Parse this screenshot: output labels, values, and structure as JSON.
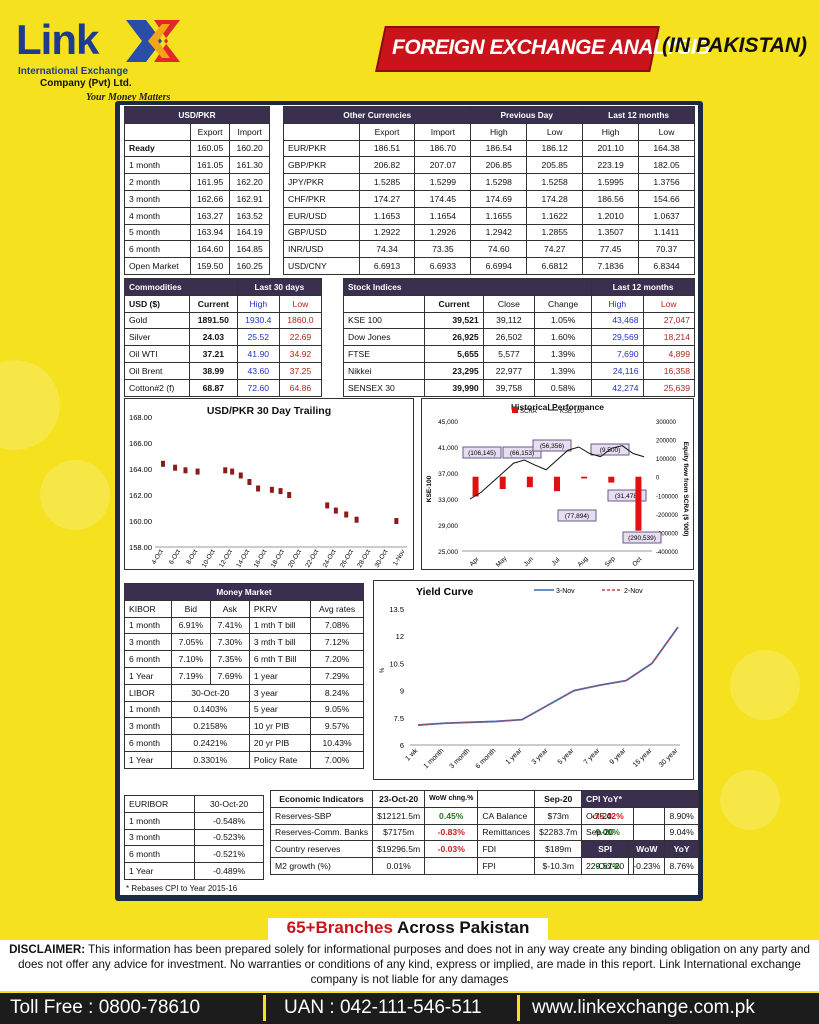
{
  "header": {
    "logo_main": "Link",
    "logo_sub1": "International Exchange",
    "logo_sub2": "Company (Pvt) Ltd.",
    "logo_tagline": "Your Money Matters",
    "banner_title": "FOREIGN EXCHANGE ANALYSIS",
    "banner_region": "(IN PAKISTAN)"
  },
  "usdpkr": {
    "title": "USD/PKR",
    "cols": [
      "Export",
      "Import"
    ],
    "rows": [
      [
        "Ready",
        "160.05",
        "160.20"
      ],
      [
        "1 month",
        "161.05",
        "161.30"
      ],
      [
        "2 month",
        "161.95",
        "162.20"
      ],
      [
        "3 month",
        "162.66",
        "162.91"
      ],
      [
        "4 month",
        "163.27",
        "163.52"
      ],
      [
        "5 month",
        "163.94",
        "164.19"
      ],
      [
        "6 month",
        "164.60",
        "164.85"
      ],
      [
        "Open Market",
        "159.50",
        "160.25"
      ]
    ]
  },
  "other": {
    "title": "Other Currencies",
    "prev_title": "Previous Day",
    "l12_title": "Last 12 months",
    "cols": [
      "Export",
      "Import",
      "High",
      "Low",
      "High",
      "Low"
    ],
    "rows": [
      [
        "EUR/PKR",
        "186.51",
        "186.70",
        "186.54",
        "186.12",
        "201.10",
        "164.38"
      ],
      [
        "GBP/PKR",
        "206.82",
        "207.07",
        "206.85",
        "205.85",
        "223.19",
        "182.05"
      ],
      [
        "JPY/PKR",
        "1.5285",
        "1.5299",
        "1.5298",
        "1.5258",
        "1.5995",
        "1.3756"
      ],
      [
        "CHF/PKR",
        "174.27",
        "174.45",
        "174.69",
        "174.28",
        "186.56",
        "154.66"
      ],
      [
        "EUR/USD",
        "1.1653",
        "1.1654",
        "1.1655",
        "1.1622",
        "1.2010",
        "1.0637"
      ],
      [
        "GBP/USD",
        "1.2922",
        "1.2926",
        "1.2942",
        "1.2855",
        "1.3507",
        "1.1411"
      ],
      [
        "INR/USD",
        "74.34",
        "73.35",
        "74.60",
        "74.27",
        "77.45",
        "70.37"
      ],
      [
        "USD/CNY",
        "6.6913",
        "6.6933",
        "6.6994",
        "6.6812",
        "7.1836",
        "6.8344"
      ]
    ]
  },
  "commodities": {
    "title": "Commodities",
    "last30": "Last 30 days",
    "cols": [
      "USD ($)",
      "Current",
      "High",
      "Low"
    ],
    "rows": [
      [
        "Gold",
        "1891.50",
        "1930.4",
        "1860.0"
      ],
      [
        "Silver",
        "24.03",
        "25.52",
        "22.69"
      ],
      [
        "Oil WTI",
        "37.21",
        "41.90",
        "34.92"
      ],
      [
        "Oil Brent",
        "38.99",
        "43.60",
        "37.25"
      ],
      [
        "Cotton#2 (f)",
        "68.87",
        "72.60",
        "64.86"
      ]
    ]
  },
  "stocks": {
    "title": "Stock Indices",
    "l12": "Last 12 months",
    "cols": [
      "Current",
      "Close",
      "Change",
      "High",
      "Low"
    ],
    "rows": [
      [
        "KSE 100",
        "39,521",
        "39,112",
        "1.05%",
        "43,468",
        "27,047"
      ],
      [
        "Dow Jones",
        "26,925",
        "26,502",
        "1.60%",
        "29,569",
        "18,214"
      ],
      [
        "FTSE",
        "5,655",
        "5,577",
        "1.39%",
        "7,690",
        "4,899"
      ],
      [
        "Nikkei",
        "23,295",
        "22,977",
        "1.39%",
        "24,116",
        "16,358"
      ],
      [
        "SENSEX 30",
        "39,990",
        "39,758",
        "0.58%",
        "42,274",
        "25,639"
      ]
    ]
  },
  "chart_data": [
    {
      "type": "line",
      "title": "USD/PKR 30 Day Trailing",
      "x": [
        "4-Oct",
        "6-Oct",
        "8-Oct",
        "10-Oct",
        "12-Oct",
        "14-Oct",
        "16-Oct",
        "18-Oct",
        "20-Oct",
        "22-Oct",
        "24-Oct",
        "26-Oct",
        "28-Oct",
        "30-Oct",
        "1-Nov"
      ],
      "ylim": [
        158,
        168
      ],
      "yticks": [
        "158.00",
        "160.00",
        "162.00",
        "164.00",
        "166.00",
        "168.00"
      ],
      "points": [
        [
          0,
          164.4
        ],
        [
          0.7,
          164.1
        ],
        [
          1.3,
          163.9
        ],
        [
          2,
          163.8
        ],
        [
          3.6,
          163.9
        ],
        [
          4,
          163.8
        ],
        [
          4.5,
          163.5
        ],
        [
          5,
          163.0
        ],
        [
          5.5,
          162.5
        ],
        [
          6.3,
          162.4
        ],
        [
          6.8,
          162.3
        ],
        [
          7.3,
          162.0
        ],
        [
          9.5,
          161.2
        ],
        [
          10,
          160.8
        ],
        [
          10.6,
          160.5
        ],
        [
          11.2,
          160.1
        ],
        [
          13.5,
          160.0
        ]
      ]
    },
    {
      "type": "bar+line",
      "title": "Historical Performance",
      "legend": [
        "SCRA",
        "KSE 100"
      ],
      "ylabel_left": "KSE-100",
      "ylabel_right": "Equity flow from SCRA ($ '000)",
      "x": [
        "Apr",
        "May",
        "Jun",
        "Jul",
        "Aug",
        "Sep",
        "Oct"
      ],
      "yleft": [
        25000,
        45000
      ],
      "yleft_ticks": [
        "25,000",
        "29,000",
        "33,000",
        "37,000",
        "41,000",
        "45,000"
      ],
      "yright": [
        -400000,
        300000
      ],
      "yright_ticks": [
        "-400000",
        "-300000",
        "-200000",
        "-100000",
        "0",
        "100000",
        "200000",
        "300000"
      ],
      "bars": [
        {
          "label": "(106,145)",
          "value": -106145
        },
        {
          "label": "(66,153)",
          "value": -66153
        },
        {
          "label": "(56,356)",
          "value": -56356
        },
        {
          "label": "(77,894)",
          "value": -77894
        },
        {
          "label": "(9,500)",
          "value": -9500
        },
        {
          "label": "(31,478)",
          "value": -31478
        },
        {
          "label": "(290,539)",
          "value": -290539
        }
      ],
      "kse": [
        33000,
        34000,
        35500,
        37000,
        38500,
        39000,
        38200,
        37500,
        39000,
        40500,
        41000,
        40000,
        39500,
        40800,
        41200,
        40000,
        39500
      ]
    },
    {
      "type": "line",
      "title": "Yield Curve",
      "legend": [
        "3-Nov",
        "2-Nov"
      ],
      "ylabel": "%",
      "x": [
        "1 wk",
        "1 month",
        "3 month",
        "6 month",
        "1 year",
        "3 year",
        "5 year",
        "7 year",
        "9 year",
        "15 year",
        "30 year"
      ],
      "yticks": [
        "6",
        "7.5",
        "9",
        "10.5",
        "12",
        "13.5"
      ],
      "ylim": [
        6,
        13.5
      ],
      "series": [
        {
          "name": "3-Nov",
          "values": [
            7.1,
            7.2,
            7.25,
            7.3,
            7.4,
            8.2,
            9.0,
            9.3,
            9.55,
            10.5,
            12.5
          ]
        },
        {
          "name": "2-Nov",
          "values": [
            7.1,
            7.2,
            7.25,
            7.3,
            7.4,
            8.2,
            9.0,
            9.3,
            9.55,
            10.5,
            12.5
          ]
        }
      ]
    }
  ],
  "money": {
    "title": "Money Market",
    "kibor_head": [
      "KIBOR",
      "Bid",
      "Ask"
    ],
    "kibor": [
      [
        "1 month",
        "6.91%",
        "7.41%"
      ],
      [
        "3 month",
        "7.05%",
        "7.30%"
      ],
      [
        "6 month",
        "7.10%",
        "7.35%"
      ],
      [
        "1 Year",
        "7.19%",
        "7.69%"
      ]
    ],
    "pkrv_head": [
      "PKRV",
      "Avg rates"
    ],
    "pkrv": [
      [
        "1 mth T bill",
        "7.08%"
      ],
      [
        "3 mth T bill",
        "7.12%"
      ],
      [
        "6 mth T Bill",
        "7.20%"
      ],
      [
        "1 year",
        "7.29%"
      ],
      [
        "3 year",
        "8.24%"
      ],
      [
        "5 year",
        "9.05%"
      ],
      [
        "10 yr PIB",
        "9.57%"
      ],
      [
        "20 yr PIB",
        "10.43%"
      ],
      [
        "Policy Rate",
        "7.00%"
      ]
    ],
    "libor_head": [
      "LIBOR",
      "30-Oct-20"
    ],
    "libor": [
      [
        "1 month",
        "0.1403%"
      ],
      [
        "3 month",
        "0.2158%"
      ],
      [
        "6 month",
        "0.2421%"
      ],
      [
        "1 Year",
        "0.3301%"
      ]
    ]
  },
  "euribor": {
    "head": [
      "EURIBOR",
      "30-Oct-20"
    ],
    "rows": [
      [
        "1 month",
        "-0.548%"
      ],
      [
        "3 month",
        "-0.523%"
      ],
      [
        "6 month",
        "-0.521%"
      ],
      [
        "1 Year",
        "-0.489%"
      ]
    ],
    "note": "* Rebases CPI to Year 2015-16"
  },
  "econ": {
    "title": "Economic Indicators",
    "date": "23-Oct-20",
    "wow": "WoW chng.%",
    "sep": "Sep-20",
    "mom": "MoM chng.%",
    "rows": [
      [
        "Reserves-SBP",
        "$12121.5m",
        "0.45%",
        "CA Balance",
        "$73m",
        "-75.42%"
      ],
      [
        "Reserves-Comm. Banks",
        "$7175m",
        "-0.83%",
        "Remittances",
        "$2283.7m",
        "9.00%"
      ],
      [
        "Country reserves",
        "$19296.5m",
        "-0.03%",
        "FDI",
        "$189m",
        "68.30%"
      ],
      [
        "M2 growth (%)",
        "0.01%",
        "",
        "FPI",
        "$-10.3m",
        "9.57%"
      ]
    ]
  },
  "cpi": {
    "title": "CPI YoY*",
    "rows": [
      [
        "Oct-20",
        "8.90%"
      ],
      [
        "Sep-20",
        "9.04%"
      ]
    ],
    "head": [
      "SPI",
      "WoW",
      "YoY"
    ],
    "spi": [
      "22-Oct-20",
      "-0.23%",
      "8.76%"
    ]
  },
  "footer": {
    "branches_a": "65+Branches",
    "branches_b": " Across Pakistan",
    "disclaimer_label": "DISCLAIMER:",
    "disclaimer": " This information has been prepared solely for informational purposes and does not in any way create any binding obligation on any party and does not offer any advice for investment. No warranties or conditions of any kind, express or implied, are made in this report. Link International exchange company is not liable for any damages",
    "tollfree": "Toll Free : 0800-78610",
    "uan": "UAN : 042-111-546-511",
    "web": "www.linkexchange.com.pk"
  }
}
